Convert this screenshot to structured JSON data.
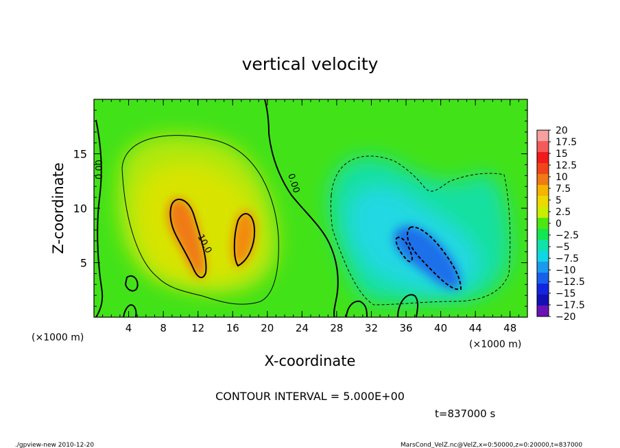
{
  "chart_data": {
    "type": "heatmap",
    "title": "vertical velocity",
    "xlabel": "X-coordinate",
    "ylabel": "Z-coordinate",
    "x_unit": "(×1000 m)",
    "y_unit": "(×1000 m)",
    "xlim": [
      0,
      50
    ],
    "ylim": [
      0,
      20
    ],
    "x_ticks": [
      "4",
      "8",
      "12",
      "16",
      "20",
      "24",
      "28",
      "32",
      "36",
      "40",
      "44",
      "48"
    ],
    "y_ticks": [
      "5",
      "10",
      "15"
    ],
    "colorbar": {
      "labels": [
        "20",
        "17.5",
        "15",
        "12.5",
        "10",
        "7.5",
        "5",
        "2.5",
        "0",
        "−2.5",
        "−5",
        "−7.5",
        "−10",
        "−12.5",
        "−15",
        "−17.5",
        "−20"
      ],
      "colors": [
        "#f7a0a0",
        "#f55a5a",
        "#f21a1a",
        "#f0441a",
        "#f07a14",
        "#f4b400",
        "#ecd900",
        "#c9ee00",
        "#4ee612",
        "#14e650",
        "#10e2a8",
        "#10d6e4",
        "#1a9aee",
        "#1860ec",
        "#1226e0",
        "#1210b4",
        "#6a12b6"
      ]
    },
    "contour_labels": [
      "0.00",
      "0.00",
      "10.0"
    ],
    "annotation": "CONTOUR INTERVAL = 5.000E+00",
    "time_label": "t=837000 s"
  },
  "footer": {
    "left": "./gpview-new  2010-12-20",
    "right": "MarsCond_VelZ.nc@VelZ,x=0:50000,z=0:20000,t=837000"
  }
}
